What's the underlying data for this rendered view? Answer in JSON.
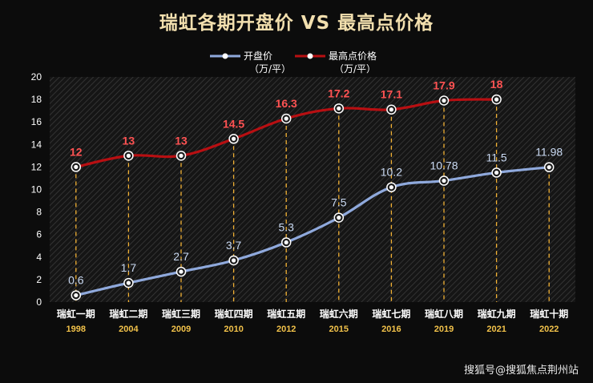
{
  "chart_data": {
    "type": "line",
    "title": "瑞虹各期开盘价 VS 最高点价格",
    "categories": [
      "瑞虹一期",
      "瑞虹二期",
      "瑞虹三期",
      "瑞虹四期",
      "瑞虹五期",
      "瑞虹六期",
      "瑞虹七期",
      "瑞虹八期",
      "瑞虹九期",
      "瑞虹十期"
    ],
    "years": [
      "1998",
      "2004",
      "2009",
      "2010",
      "2012",
      "2015",
      "2016",
      "2019",
      "2021",
      "2022"
    ],
    "series": [
      {
        "name": "开盘价",
        "unit": "（万/平）",
        "color": "#8fa9dc",
        "values": [
          0.6,
          1.7,
          2.7,
          3.7,
          5.3,
          7.5,
          10.2,
          10.78,
          11.5,
          11.98
        ],
        "labels": [
          "0.6",
          "1.7",
          "2.7",
          "3.7",
          "5.3",
          "7.5",
          "10.2",
          "10.78",
          "11.5",
          "11.98"
        ]
      },
      {
        "name": "最高点价格",
        "unit": "（万/平）",
        "color": "#b80f12",
        "values": [
          12,
          13,
          13,
          14.5,
          16.3,
          17.2,
          17.1,
          17.9,
          18,
          null
        ],
        "labels": [
          "12",
          "13",
          "13",
          "14.5",
          "16.3",
          "17.2",
          "17.1",
          "17.9",
          "18",
          ""
        ]
      }
    ],
    "ylim": [
      0,
      20
    ],
    "yticks": [
      0,
      2,
      4,
      6,
      8,
      10,
      12,
      14,
      16,
      18,
      20
    ],
    "legend_position": "top",
    "grid": false,
    "drop_lines": true,
    "drop_line_color": "#f2b134",
    "background": "hatched-dark"
  },
  "watermark": "搜狐号@搜狐焦点荆州站"
}
